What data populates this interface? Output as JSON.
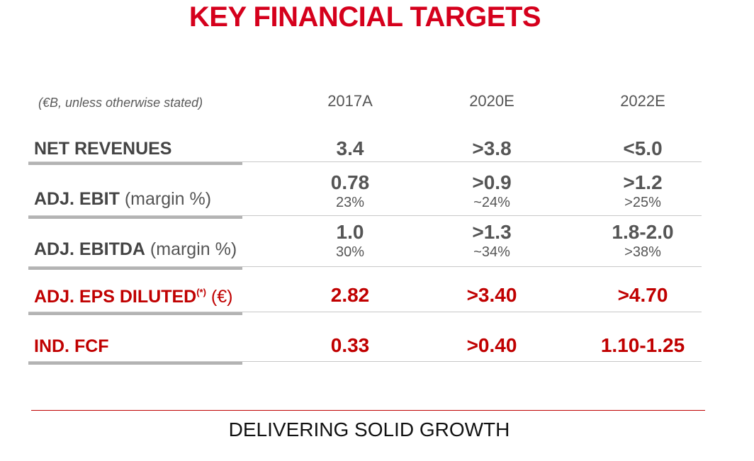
{
  "title": "KEY FINANCIAL TARGETS",
  "unit_note": "(€B, unless otherwise stated)",
  "columns": [
    "2017A",
    "2020E",
    "2022E"
  ],
  "rows": [
    {
      "label": "NET REVENUES",
      "label_suffix": "",
      "values": [
        "3.4",
        ">3.8",
        "<5.0"
      ],
      "margins": []
    },
    {
      "label": "ADJ. EBIT",
      "label_suffix": "(margin %)",
      "values": [
        "0.78",
        ">0.9",
        ">1.2"
      ],
      "margins": [
        "23%",
        "~24%",
        ">25%"
      ]
    },
    {
      "label": "ADJ. EBITDA",
      "label_suffix": "(margin %)",
      "values": [
        "1.0",
        ">1.3",
        "1.8-2.0"
      ],
      "margins": [
        "30%",
        "~34%",
        ">38%"
      ]
    },
    {
      "label": "ADJ. EPS DILUTED",
      "label_sup": "(*)",
      "label_suffix": "(€)",
      "values": [
        "2.82",
        ">3.40",
        ">4.70"
      ],
      "margins": []
    },
    {
      "label": "IND. FCF",
      "label_suffix": "",
      "values": [
        "0.33",
        ">0.40",
        "1.10-1.25"
      ],
      "margins": []
    }
  ],
  "footer": "DELIVERING SOLID GROWTH",
  "colors": {
    "accent_red": "#c00000",
    "title_red": "#d5001c",
    "text_gray": "#555555"
  }
}
